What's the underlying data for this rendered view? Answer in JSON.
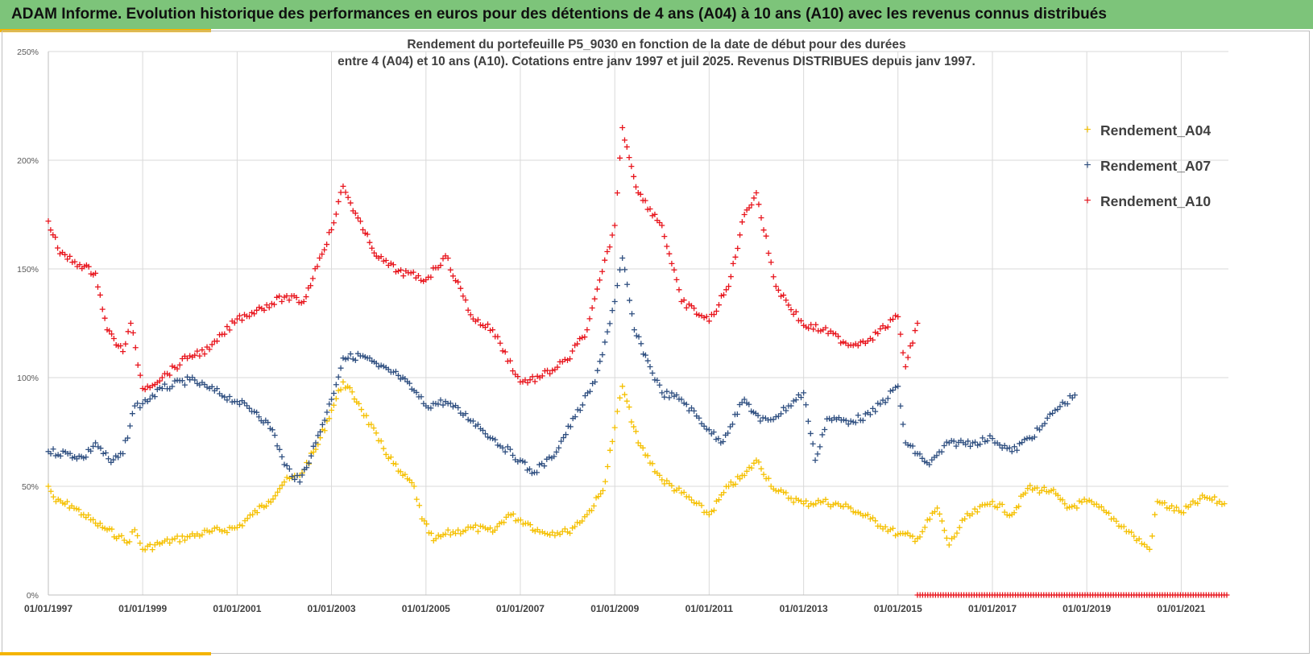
{
  "header": {
    "title": "ADAM Informe. Evolution historique des performances en euros pour des détentions de 4 ans (A04) à 10 ans (A10) avec les revenus connus distribués"
  },
  "chart_data": {
    "type": "scatter",
    "title_line1": "Rendement du portefeuille P5_9030 en fonction de la date de début pour des durées",
    "title_line2": "entre 4 (A04) et 10 ans (A10). Cotations  entre janv 1997 et juil 2025. Revenus DISTRIBUES depuis janv 1997.",
    "xlabel": "",
    "ylabel": "",
    "x_range": [
      "1997-01-01",
      "2022-01-01"
    ],
    "ylim": [
      0,
      2.5
    ],
    "y_ticks": [
      "0%",
      "50%",
      "100%",
      "150%",
      "200%",
      "250%"
    ],
    "x_ticks": [
      "01/01/1997",
      "01/01/1999",
      "01/01/2001",
      "01/01/2003",
      "01/01/2005",
      "01/01/2007",
      "01/01/2009",
      "01/01/2011",
      "01/01/2013",
      "01/01/2015",
      "01/01/2017",
      "01/01/2019",
      "01/01/2021"
    ],
    "grid": true,
    "legend_position": "top-right",
    "marker": "+",
    "series": [
      {
        "name": "Rendement_A04",
        "color": "#f5c000",
        "points": [
          [
            "1997-01-01",
            0.5
          ],
          [
            "1997-03-01",
            0.43
          ],
          [
            "1997-07-01",
            0.41
          ],
          [
            "1997-10-01",
            0.37
          ],
          [
            "1998-01-01",
            0.33
          ],
          [
            "1998-04-01",
            0.3
          ],
          [
            "1998-07-01",
            0.27
          ],
          [
            "1998-09-01",
            0.24
          ],
          [
            "1998-11-01",
            0.3
          ],
          [
            "1999-01-01",
            0.21
          ],
          [
            "1999-06-01",
            0.24
          ],
          [
            "2000-01-01",
            0.27
          ],
          [
            "2000-06-01",
            0.29
          ],
          [
            "2001-01-01",
            0.31
          ],
          [
            "2001-05-01",
            0.37
          ],
          [
            "2001-09-01",
            0.43
          ],
          [
            "2002-01-01",
            0.52
          ],
          [
            "2002-05-01",
            0.55
          ],
          [
            "2002-09-01",
            0.67
          ],
          [
            "2003-01-01",
            0.85
          ],
          [
            "2003-04-01",
            0.98
          ],
          [
            "2003-08-01",
            0.88
          ],
          [
            "2004-01-01",
            0.71
          ],
          [
            "2004-06-01",
            0.57
          ],
          [
            "2004-10-01",
            0.5
          ],
          [
            "2004-12-01",
            0.35
          ],
          [
            "2005-03-01",
            0.25
          ],
          [
            "2005-06-01",
            0.28
          ],
          [
            "2006-01-01",
            0.31
          ],
          [
            "2006-06-01",
            0.29
          ],
          [
            "2006-10-01",
            0.37
          ],
          [
            "2007-03-01",
            0.33
          ],
          [
            "2007-06-01",
            0.29
          ],
          [
            "2008-01-01",
            0.29
          ],
          [
            "2008-06-01",
            0.37
          ],
          [
            "2008-10-01",
            0.48
          ],
          [
            "2009-01-01",
            0.77
          ],
          [
            "2009-03-01",
            0.96
          ],
          [
            "2009-07-01",
            0.7
          ],
          [
            "2010-01-01",
            0.53
          ],
          [
            "2010-06-01",
            0.47
          ],
          [
            "2011-01-01",
            0.37
          ],
          [
            "2011-06-01",
            0.5
          ],
          [
            "2011-10-01",
            0.55
          ],
          [
            "2012-01-01",
            0.62
          ],
          [
            "2012-06-01",
            0.48
          ],
          [
            "2013-01-01",
            0.42
          ],
          [
            "2013-06-01",
            0.43
          ],
          [
            "2014-01-01",
            0.4
          ],
          [
            "2014-06-01",
            0.35
          ],
          [
            "2015-01-01",
            0.28
          ],
          [
            "2015-06-01",
            0.26
          ],
          [
            "2015-11-01",
            0.4
          ],
          [
            "2016-02-01",
            0.23
          ],
          [
            "2016-06-01",
            0.35
          ],
          [
            "2017-01-01",
            0.43
          ],
          [
            "2017-06-01",
            0.37
          ],
          [
            "2017-10-01",
            0.49
          ],
          [
            "2018-04-01",
            0.48
          ],
          [
            "2018-08-01",
            0.4
          ],
          [
            "2019-01-01",
            0.43
          ],
          [
            "2019-06-01",
            0.38
          ],
          [
            "2020-01-01",
            0.27
          ],
          [
            "2020-05-01",
            0.21
          ],
          [
            "2020-07-01",
            0.43
          ],
          [
            "2021-01-01",
            0.38
          ],
          [
            "2021-07-01",
            0.45
          ],
          [
            "2021-12-01",
            0.42
          ]
        ]
      },
      {
        "name": "Rendement_A07",
        "color": "#2f4f80",
        "points": [
          [
            "1997-01-01",
            0.66
          ],
          [
            "1997-06-01",
            0.65
          ],
          [
            "1997-10-01",
            0.63
          ],
          [
            "1998-01-01",
            0.7
          ],
          [
            "1998-05-01",
            0.61
          ],
          [
            "1998-08-01",
            0.65
          ],
          [
            "1998-11-01",
            0.87
          ],
          [
            "1999-01-01",
            0.88
          ],
          [
            "1999-06-01",
            0.95
          ],
          [
            "2000-01-01",
            0.99
          ],
          [
            "2000-06-01",
            0.95
          ],
          [
            "2001-01-01",
            0.89
          ],
          [
            "2001-06-01",
            0.84
          ],
          [
            "2001-10-01",
            0.76
          ],
          [
            "2002-01-01",
            0.6
          ],
          [
            "2002-05-01",
            0.52
          ],
          [
            "2002-09-01",
            0.7
          ],
          [
            "2003-01-01",
            0.9
          ],
          [
            "2003-04-01",
            1.09
          ],
          [
            "2003-09-01",
            1.1
          ],
          [
            "2004-01-01",
            1.05
          ],
          [
            "2004-06-01",
            1.01
          ],
          [
            "2004-10-01",
            0.94
          ],
          [
            "2005-01-01",
            0.87
          ],
          [
            "2005-06-01",
            0.89
          ],
          [
            "2006-01-01",
            0.8
          ],
          [
            "2006-06-01",
            0.72
          ],
          [
            "2007-01-01",
            0.62
          ],
          [
            "2007-04-01",
            0.56
          ],
          [
            "2007-09-01",
            0.63
          ],
          [
            "2008-03-01",
            0.82
          ],
          [
            "2008-08-01",
            0.98
          ],
          [
            "2009-01-01",
            1.35
          ],
          [
            "2009-03-01",
            1.55
          ],
          [
            "2009-06-01",
            1.22
          ],
          [
            "2009-10-01",
            1.05
          ],
          [
            "2010-01-01",
            0.93
          ],
          [
            "2010-06-01",
            0.9
          ],
          [
            "2011-01-01",
            0.76
          ],
          [
            "2011-04-01",
            0.7
          ],
          [
            "2011-10-01",
            0.9
          ],
          [
            "2012-02-01",
            0.8
          ],
          [
            "2012-06-01",
            0.82
          ],
          [
            "2013-01-01",
            0.93
          ],
          [
            "2013-04-01",
            0.62
          ],
          [
            "2013-07-01",
            0.81
          ],
          [
            "2014-01-01",
            0.8
          ],
          [
            "2014-06-01",
            0.83
          ],
          [
            "2015-01-01",
            0.96
          ],
          [
            "2015-03-01",
            0.7
          ],
          [
            "2015-09-01",
            0.6
          ],
          [
            "2016-02-01",
            0.7
          ],
          [
            "2016-08-01",
            0.7
          ],
          [
            "2017-01-01",
            0.72
          ],
          [
            "2017-06-01",
            0.66
          ],
          [
            "2018-01-01",
            0.76
          ],
          [
            "2018-05-01",
            0.85
          ],
          [
            "2018-10-01",
            0.92
          ]
        ]
      },
      {
        "name": "Rendement_A10",
        "color": "#e8141c",
        "points": [
          [
            "1997-01-01",
            1.72
          ],
          [
            "1997-04-01",
            1.57
          ],
          [
            "1997-09-01",
            1.52
          ],
          [
            "1998-01-01",
            1.48
          ],
          [
            "1998-04-01",
            1.22
          ],
          [
            "1998-08-01",
            1.12
          ],
          [
            "1998-10-01",
            1.25
          ],
          [
            "1999-01-01",
            0.95
          ],
          [
            "1999-06-01",
            1.0
          ],
          [
            "2000-01-01",
            1.1
          ],
          [
            "2000-06-01",
            1.13
          ],
          [
            "2001-01-01",
            1.27
          ],
          [
            "2001-06-01",
            1.31
          ],
          [
            "2002-01-01",
            1.37
          ],
          [
            "2002-06-01",
            1.35
          ],
          [
            "2002-10-01",
            1.55
          ],
          [
            "2003-01-01",
            1.68
          ],
          [
            "2003-04-01",
            1.88
          ],
          [
            "2003-09-01",
            1.68
          ],
          [
            "2004-01-01",
            1.55
          ],
          [
            "2004-06-01",
            1.49
          ],
          [
            "2005-01-01",
            1.45
          ],
          [
            "2005-06-01",
            1.56
          ],
          [
            "2006-01-01",
            1.27
          ],
          [
            "2006-06-01",
            1.22
          ],
          [
            "2007-01-01",
            0.98
          ],
          [
            "2007-06-01",
            1.0
          ],
          [
            "2008-01-01",
            1.08
          ],
          [
            "2008-06-01",
            1.22
          ],
          [
            "2009-01-01",
            1.7
          ],
          [
            "2009-03-01",
            2.15
          ],
          [
            "2009-07-01",
            1.85
          ],
          [
            "2010-01-01",
            1.7
          ],
          [
            "2010-06-01",
            1.35
          ],
          [
            "2011-01-01",
            1.26
          ],
          [
            "2011-06-01",
            1.42
          ],
          [
            "2011-10-01",
            1.75
          ],
          [
            "2012-01-01",
            1.85
          ],
          [
            "2012-06-01",
            1.42
          ],
          [
            "2013-01-01",
            1.24
          ],
          [
            "2013-06-01",
            1.22
          ],
          [
            "2014-01-01",
            1.15
          ],
          [
            "2014-06-01",
            1.18
          ],
          [
            "2015-01-01",
            1.28
          ],
          [
            "2015-03-01",
            1.05
          ],
          [
            "2015-06-01",
            1.25
          ]
        ]
      }
    ],
    "zero_band": {
      "color": "#e8141c",
      "from": "2015-06-01",
      "to": "2022-01-01",
      "value": 0
    }
  }
}
